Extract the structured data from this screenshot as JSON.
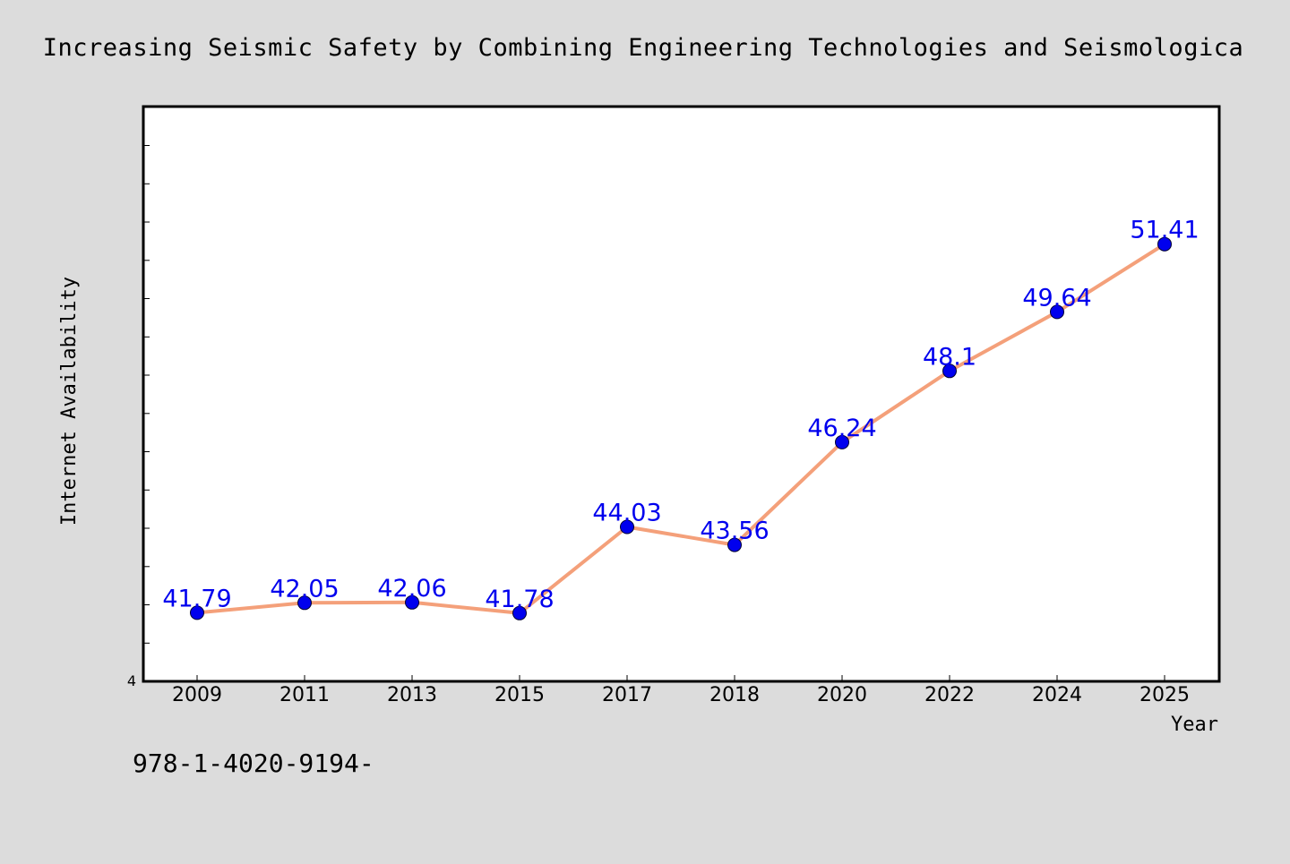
{
  "colors": {
    "page_background": "#dcdcdc",
    "plot_background": "#ffffff",
    "line": "#f4a07a",
    "marker": "#0000ee",
    "data_label": "#0000ee",
    "axis": "#000000"
  },
  "footnote": "978-1-4020-9194-",
  "chart_data": {
    "type": "line",
    "title": "Increasing Seismic Safety by Combining Engineering Technologies and Seismologica",
    "xlabel": "Year",
    "ylabel": "Internet Availability",
    "categories": [
      "2009",
      "2011",
      "2013",
      "2015",
      "2017",
      "2018",
      "2020",
      "2022",
      "2024",
      "2025"
    ],
    "series": [
      {
        "values": [
          41.79,
          42.05,
          42.06,
          41.78,
          44.03,
          43.56,
          46.24,
          48.1,
          49.64,
          51.41
        ],
        "data_labels": [
          "41.79",
          "42.05",
          "42.06",
          "41.78",
          "44.03",
          "43.56",
          "46.24",
          "48.1",
          "49.64",
          "51.41"
        ]
      }
    ],
    "ylim": [
      40,
      55
    ],
    "y_tick_label": "4",
    "grid": false,
    "legend": "none"
  }
}
